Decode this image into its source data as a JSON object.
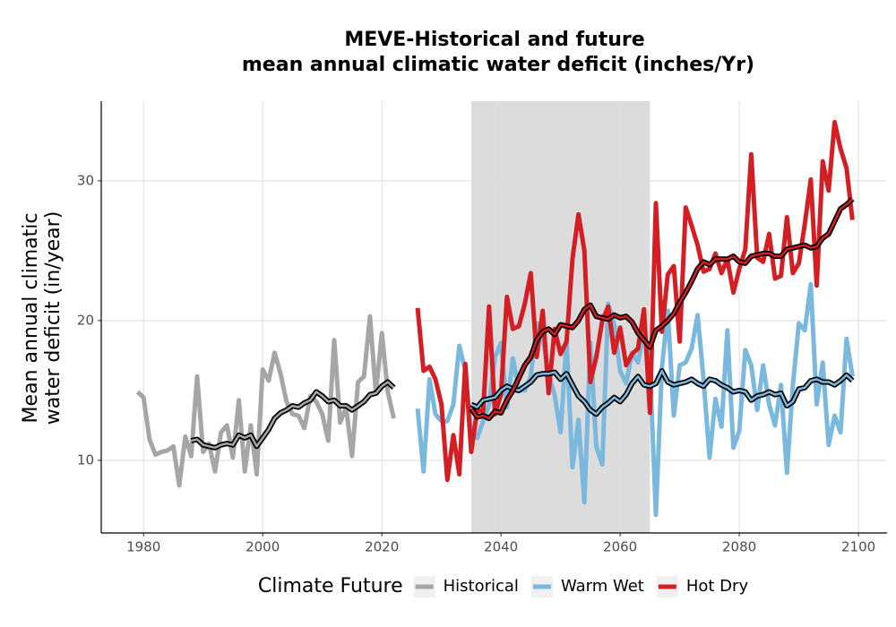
{
  "chart_data": {
    "type": "line",
    "title": [
      "MEVE-Historical and future",
      "mean annual climatic water deficit (inches/Yr)"
    ],
    "y_label": [
      "Mean annual climatic",
      "water deficit (in/year)"
    ],
    "legend_title": "Climate Future",
    "legend_position": "bottom",
    "grid": true,
    "xlim": [
      1972.9,
      2104.8
    ],
    "xticks": [
      1980,
      2000,
      2020,
      2040,
      2060,
      2080,
      2100
    ],
    "ylim": [
      4.8,
      35.7
    ],
    "yticks": [
      10,
      20,
      30
    ],
    "shade_x": [
      2035,
      2065
    ],
    "shade_color": "#dcdcdc",
    "rolling_color": "#000000",
    "series": [
      {
        "name": "Historical",
        "color": "#a6a6a6",
        "x": [
          1979,
          1980,
          1981,
          1982,
          1983,
          1984,
          1985,
          1986,
          1987,
          1988,
          1989,
          1990,
          1991,
          1992,
          1993,
          1994,
          1995,
          1996,
          1997,
          1998,
          1999,
          2000,
          2001,
          2002,
          2003,
          2004,
          2005,
          2006,
          2007,
          2008,
          2009,
          2010,
          2011,
          2012,
          2013,
          2014,
          2015,
          2016,
          2017,
          2018,
          2019,
          2020,
          2021,
          2022
        ],
        "values": [
          14.9,
          14.5,
          11.5,
          10.4,
          10.6,
          10.7,
          11.0,
          8.2,
          11.7,
          10.3,
          16.0,
          10.6,
          11.2,
          9.2,
          12.0,
          12.5,
          10.2,
          14.3,
          9.2,
          12.5,
          9.0,
          16.5,
          15.7,
          17.7,
          16.2,
          14.2,
          13.3,
          13.2,
          12.3,
          14.6,
          14.2,
          13.3,
          11.4,
          18.6,
          12.7,
          13.8,
          10.3,
          15.6,
          16.0,
          20.3,
          14.8,
          19.1,
          14.9,
          13.0
        ],
        "rolling_x": [
          1988,
          1989,
          1990,
          1991,
          1992,
          1993,
          1994,
          1995,
          1996,
          1997,
          1998,
          1999,
          2000,
          2001,
          2002,
          2003,
          2004,
          2005,
          2006,
          2007,
          2008,
          2009,
          2010,
          2011,
          2012,
          2013,
          2014,
          2015,
          2016,
          2017,
          2018,
          2019,
          2020,
          2021,
          2022
        ],
        "rolling_values": [
          11.4,
          11.5,
          11.1,
          11.0,
          10.9,
          11.1,
          11.2,
          11.1,
          11.8,
          11.6,
          11.8,
          11.0,
          11.6,
          12.2,
          13.0,
          13.4,
          13.6,
          13.9,
          13.8,
          14.1,
          14.3,
          14.9,
          14.6,
          14.2,
          14.3,
          13.9,
          13.9,
          13.6,
          13.9,
          14.2,
          14.7,
          14.8,
          15.3,
          15.6,
          15.2
        ]
      },
      {
        "name": "Warm Wet",
        "color": "#7ab8de",
        "x": [
          2026,
          2027,
          2028,
          2029,
          2030,
          2031,
          2032,
          2033,
          2034,
          2035,
          2036,
          2037,
          2038,
          2039,
          2040,
          2041,
          2042,
          2043,
          2044,
          2045,
          2046,
          2047,
          2048,
          2049,
          2050,
          2051,
          2052,
          2053,
          2054,
          2055,
          2056,
          2057,
          2058,
          2059,
          2060,
          2061,
          2062,
          2063,
          2064,
          2065,
          2066,
          2067,
          2068,
          2069,
          2070,
          2071,
          2072,
          2073,
          2074,
          2075,
          2076,
          2077,
          2078,
          2079,
          2080,
          2081,
          2082,
          2083,
          2084,
          2085,
          2086,
          2087,
          2088,
          2089,
          2090,
          2091,
          2092,
          2093,
          2094,
          2095,
          2096,
          2097,
          2098,
          2099
        ],
        "values": [
          13.7,
          9.2,
          15.8,
          13.3,
          12.8,
          12.8,
          14.0,
          18.2,
          16.4,
          12.0,
          11.6,
          12.8,
          14.0,
          17.4,
          18.4,
          13.8,
          17.3,
          15.0,
          15.0,
          16.0,
          19.8,
          18.9,
          16.1,
          14.7,
          12.0,
          18.5,
          9.5,
          12.9,
          7.0,
          18.4,
          11.0,
          9.7,
          21.2,
          19.7,
          16.4,
          15.5,
          17.7,
          17.0,
          19.3,
          16.8,
          6.1,
          16.6,
          20.7,
          13.2,
          16.8,
          17.0,
          18.0,
          20.4,
          15.8,
          10.2,
          14.4,
          12.4,
          19.3,
          10.9,
          12.1,
          17.9,
          16.8,
          13.6,
          16.8,
          14.0,
          12.5,
          15.4,
          9.1,
          15.4,
          19.8,
          19.3,
          22.6,
          14.0,
          17.0,
          11.1,
          13.2,
          12.0,
          18.7,
          16.0
        ],
        "rolling_x": [
          2035,
          2036,
          2037,
          2038,
          2039,
          2040,
          2041,
          2042,
          2043,
          2044,
          2045,
          2046,
          2047,
          2048,
          2049,
          2050,
          2051,
          2052,
          2053,
          2054,
          2055,
          2056,
          2057,
          2058,
          2059,
          2060,
          2061,
          2062,
          2063,
          2064,
          2065,
          2066,
          2067,
          2068,
          2069,
          2070,
          2071,
          2072,
          2073,
          2074,
          2075,
          2076,
          2077,
          2078,
          2079,
          2080,
          2081,
          2082,
          2083,
          2084,
          2085,
          2086,
          2087,
          2088,
          2089,
          2090,
          2091,
          2092,
          2093,
          2094,
          2095,
          2096,
          2097,
          2098,
          2099
        ],
        "rolling_values": [
          14.0,
          13.8,
          14.3,
          14.4,
          14.5,
          15.0,
          15.3,
          15.1,
          15.0,
          15.3,
          15.6,
          16.1,
          16.2,
          16.2,
          16.3,
          15.8,
          16.2,
          15.4,
          14.6,
          14.2,
          13.6,
          13.3,
          13.8,
          14.1,
          14.5,
          14.2,
          14.7,
          15.5,
          16.0,
          15.4,
          15.3,
          15.5,
          16.4,
          15.6,
          15.4,
          15.5,
          15.6,
          15.8,
          15.5,
          15.3,
          15.8,
          15.7,
          15.4,
          15.2,
          14.9,
          15.0,
          14.9,
          14.3,
          14.6,
          14.7,
          14.9,
          14.7,
          14.8,
          13.9,
          14.2,
          15.1,
          15.2,
          15.7,
          15.8,
          15.6,
          15.6,
          15.4,
          15.7,
          16.1,
          15.7
        ]
      },
      {
        "name": "Hot Dry",
        "color": "#d31f24",
        "x": [
          2026,
          2027,
          2028,
          2029,
          2030,
          2031,
          2032,
          2033,
          2034,
          2035,
          2036,
          2037,
          2038,
          2039,
          2040,
          2041,
          2042,
          2043,
          2044,
          2045,
          2046,
          2047,
          2048,
          2049,
          2050,
          2051,
          2052,
          2053,
          2054,
          2055,
          2056,
          2057,
          2058,
          2059,
          2060,
          2061,
          2062,
          2063,
          2064,
          2065,
          2066,
          2067,
          2068,
          2069,
          2070,
          2071,
          2072,
          2073,
          2074,
          2075,
          2076,
          2077,
          2078,
          2079,
          2080,
          2081,
          2082,
          2083,
          2084,
          2085,
          2086,
          2087,
          2088,
          2089,
          2090,
          2091,
          2092,
          2093,
          2094,
          2095,
          2096,
          2097,
          2098,
          2099
        ],
        "values": [
          20.9,
          16.4,
          16.7,
          15.8,
          14.0,
          8.6,
          11.8,
          9.0,
          16.9,
          10.6,
          13.6,
          13.5,
          21.0,
          13.3,
          14.7,
          21.7,
          19.4,
          19.6,
          21.2,
          23.4,
          17.4,
          20.7,
          14.8,
          19.4,
          17.6,
          18.5,
          24.4,
          27.6,
          25.0,
          15.6,
          17.4,
          20.0,
          21.0,
          17.7,
          19.5,
          16.8,
          17.6,
          18.0,
          20.8,
          13.4,
          28.4,
          19.2,
          23.3,
          23.9,
          18.5,
          28.1,
          26.8,
          25.4,
          23.5,
          23.7,
          24.8,
          23.4,
          24.4,
          22.0,
          23.7,
          25.1,
          31.9,
          24.5,
          24.2,
          26.2,
          23.0,
          23.2,
          27.4,
          23.4,
          24.1,
          26.9,
          30.1,
          22.5,
          31.4,
          29.3,
          34.2,
          32.3,
          30.9,
          27.2
        ],
        "rolling_x": [
          2035,
          2036,
          2037,
          2038,
          2039,
          2040,
          2041,
          2042,
          2043,
          2044,
          2045,
          2046,
          2047,
          2048,
          2049,
          2050,
          2051,
          2052,
          2053,
          2054,
          2055,
          2056,
          2057,
          2058,
          2059,
          2060,
          2061,
          2062,
          2063,
          2064,
          2065,
          2066,
          2067,
          2068,
          2069,
          2070,
          2071,
          2072,
          2073,
          2074,
          2075,
          2076,
          2077,
          2078,
          2079,
          2080,
          2081,
          2082,
          2083,
          2084,
          2085,
          2086,
          2087,
          2088,
          2089,
          2090,
          2091,
          2092,
          2093,
          2094,
          2095,
          2096,
          2097,
          2098,
          2099
        ],
        "rolling_values": [
          13.7,
          13.1,
          13.2,
          13.0,
          13.5,
          13.4,
          14.3,
          15.0,
          15.9,
          16.8,
          17.4,
          18.6,
          19.2,
          19.4,
          19.0,
          19.7,
          19.6,
          19.5,
          20.0,
          20.8,
          21.1,
          20.3,
          20.2,
          20.1,
          20.4,
          20.2,
          20.3,
          19.9,
          19.1,
          18.6,
          18.1,
          19.3,
          19.6,
          20.0,
          20.5,
          21.3,
          22.0,
          22.8,
          23.7,
          24.2,
          24.0,
          24.4,
          24.4,
          24.4,
          24.6,
          24.2,
          24.1,
          24.6,
          24.7,
          24.8,
          24.8,
          24.6,
          24.6,
          25.1,
          25.2,
          25.3,
          25.4,
          25.2,
          25.3,
          25.9,
          26.2,
          27.1,
          28.0,
          28.3,
          28.7
        ]
      }
    ]
  }
}
